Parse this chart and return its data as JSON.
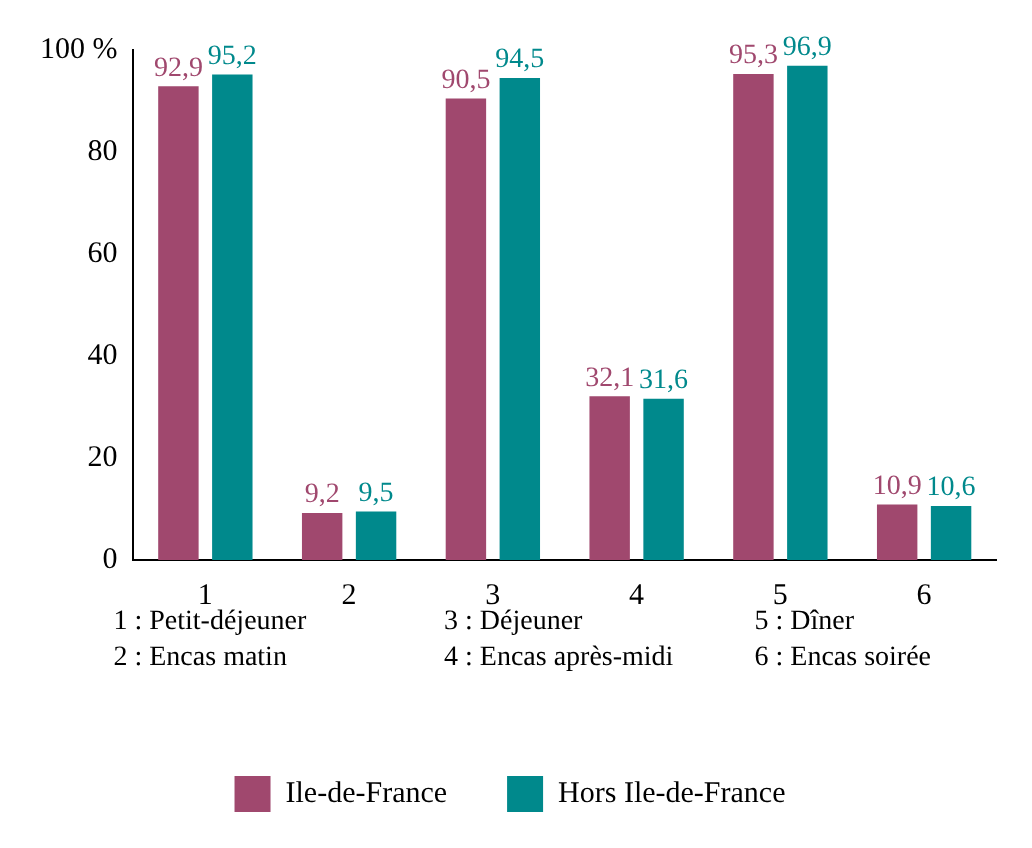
{
  "chart_data": {
    "type": "bar",
    "categories": [
      "1",
      "2",
      "3",
      "4",
      "5",
      "6"
    ],
    "series": [
      {
        "name": "Ile-de-France",
        "color": "#a0486e",
        "values": [
          92.9,
          9.2,
          90.5,
          32.1,
          95.3,
          10.9
        ],
        "value_labels": [
          "92,9",
          "9,2",
          "90,5",
          "32,1",
          "95,3",
          "10,9"
        ]
      },
      {
        "name": "Hors Ile-de-France",
        "color": "#00898c",
        "values": [
          95.2,
          9.5,
          94.5,
          31.6,
          96.9,
          10.6
        ],
        "value_labels": [
          "95,2",
          "9,5",
          "94,5",
          "31,6",
          "96,9",
          "10,6"
        ]
      }
    ],
    "ylim": [
      0,
      100
    ],
    "yticks": [
      0,
      20,
      40,
      60,
      80,
      {
        "value": 100,
        "label": "100 %"
      }
    ],
    "grid": false,
    "legend": "bottom",
    "annotations": [
      "1 : Petit-déjeuner",
      "2 : Encas matin",
      "3 : Déjeuner",
      "4 : Encas après-midi",
      "5 : Dîner",
      "6 : Encas soirée"
    ]
  }
}
